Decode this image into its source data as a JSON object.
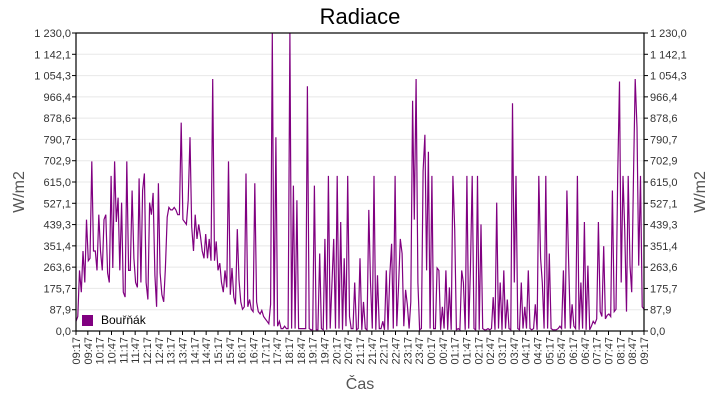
{
  "chart_data": {
    "type": "line",
    "title": "Radiace",
    "xlabel": "Čas",
    "ylabel": "W/m2",
    "ylabel_right": "W/m2",
    "ylim": [
      0,
      1230
    ],
    "yticks": [
      "0,0",
      "87,9",
      "175,7",
      "263,6",
      "351,4",
      "439,3",
      "527,1",
      "615,0",
      "702,9",
      "790,7",
      "878,6",
      "966,4",
      "1 054,3",
      "1 142,1",
      "1 230,0"
    ],
    "xticks": [
      "09:17",
      "09:47",
      "10:17",
      "10:47",
      "11:17",
      "11:47",
      "12:17",
      "12:47",
      "13:17",
      "13:47",
      "14:17",
      "14:47",
      "15:17",
      "15:47",
      "16:17",
      "16:47",
      "17:17",
      "17:47",
      "18:17",
      "18:47",
      "19:17",
      "19:47",
      "20:17",
      "20:47",
      "21:17",
      "21:47",
      "22:17",
      "22:47",
      "23:17",
      "23:47",
      "00:17",
      "00:47",
      "01:17",
      "01:47",
      "02:17",
      "02:47",
      "03:17",
      "03:47",
      "04:17",
      "04:47",
      "05:17",
      "05:47",
      "06:17",
      "06:47",
      "07:17",
      "07:47",
      "08:17",
      "08:47",
      "09:17"
    ],
    "grid": true,
    "legend_position": "bottom-left inside",
    "series": [
      {
        "name": "Bouřňák",
        "color": "#800080",
        "x_index_step": 0.25,
        "values": [
          40,
          60,
          250,
          160,
          330,
          200,
          460,
          290,
          300,
          700,
          330,
          330,
          250,
          480,
          330,
          250,
          460,
          480,
          240,
          200,
          640,
          260,
          700,
          450,
          550,
          250,
          530,
          160,
          140,
          700,
          250,
          250,
          580,
          300,
          200,
          180,
          630,
          200,
          580,
          650,
          200,
          130,
          530,
          480,
          570,
          230,
          100,
          610,
          240,
          150,
          120,
          260,
          470,
          510,
          500,
          500,
          510,
          500,
          480,
          480,
          860,
          460,
          450,
          440,
          540,
          800,
          430,
          330,
          480,
          380,
          440,
          390,
          330,
          300,
          400,
          300,
          380,
          290,
          1040,
          290,
          370,
          250,
          280,
          200,
          160,
          250,
          180,
          700,
          150,
          260,
          140,
          110,
          420,
          210,
          120,
          90,
          100,
          650,
          100,
          130,
          90,
          80,
          610,
          120,
          80,
          70,
          85,
          60,
          50,
          40,
          30,
          110,
          1230,
          20,
          800,
          20,
          40,
          10,
          10,
          20,
          10,
          10,
          1230,
          10,
          600,
          10,
          540,
          10,
          10,
          10,
          10,
          10,
          1010,
          10,
          5,
          5,
          600,
          5,
          5,
          320,
          10,
          5,
          380,
          5,
          640,
          10,
          200,
          380,
          10,
          640,
          10,
          450,
          5,
          300,
          20,
          640,
          60,
          10,
          10,
          200,
          5,
          10,
          300,
          5,
          120,
          10,
          5,
          500,
          200,
          10,
          640,
          5,
          230,
          10,
          10,
          40,
          5,
          250,
          5,
          230,
          360,
          10,
          640,
          20,
          190,
          380,
          320,
          20,
          170,
          110,
          10,
          120,
          950,
          460,
          1040,
          200,
          5,
          10,
          660,
          810,
          250,
          740,
          10,
          640,
          10,
          10,
          260,
          250,
          5,
          100,
          10,
          250,
          5,
          180,
          5,
          640,
          420,
          5,
          10,
          5,
          250,
          200,
          5,
          640,
          10,
          250,
          640,
          10,
          5,
          640,
          5,
          440,
          10,
          5,
          5,
          10,
          5,
          10,
          140,
          5,
          530,
          10,
          200,
          5,
          250,
          10,
          130,
          10,
          5,
          940,
          200,
          640,
          10,
          5,
          200,
          10,
          100,
          10,
          250,
          10,
          5,
          10,
          110,
          5,
          640,
          300,
          200,
          10,
          640,
          10,
          320,
          10,
          5,
          5,
          5,
          10,
          20,
          10,
          250,
          10,
          580,
          290,
          10,
          110,
          20,
          10,
          640,
          5,
          200,
          10,
          450,
          5,
          270,
          5,
          20,
          40,
          30,
          50,
          450,
          80,
          60,
          350,
          50,
          65,
          70,
          60,
          580,
          80,
          90,
          640,
          1030,
          200,
          640,
          420,
          80,
          640,
          270,
          160,
          640,
          1040,
          840,
          270,
          640,
          100,
          90
        ]
      }
    ]
  },
  "legend": {
    "label": "Bouřňák",
    "color": "#800080"
  }
}
